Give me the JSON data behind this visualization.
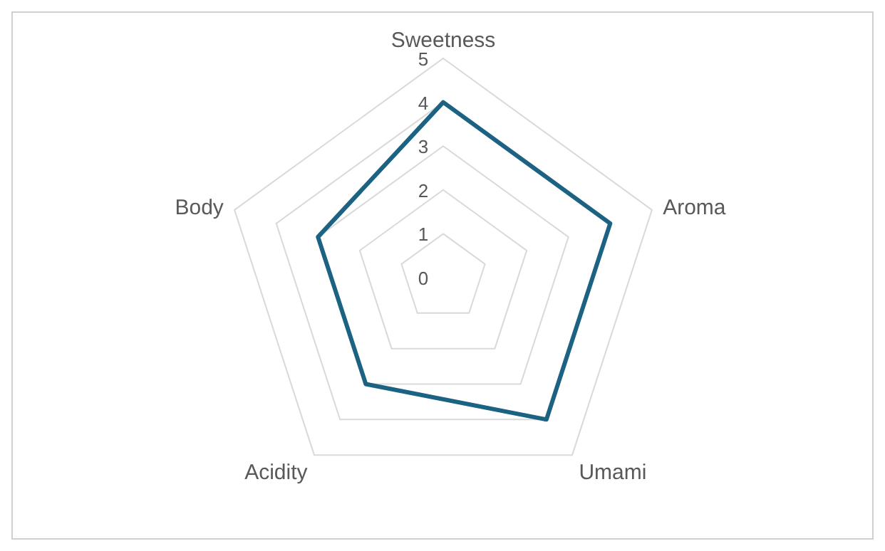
{
  "chart_data": {
    "type": "radar",
    "categories": [
      "Sweetness",
      "Aroma",
      "Umami",
      "Acidity",
      "Body"
    ],
    "series": [
      {
        "color": "#1b6283",
        "values": [
          4,
          4,
          4,
          3,
          3
        ]
      }
    ],
    "ylim": [
      0,
      5
    ],
    "yticks": [
      0,
      1,
      2,
      3,
      4,
      5
    ],
    "grid": true,
    "marker": "none",
    "line_style": "solid"
  }
}
